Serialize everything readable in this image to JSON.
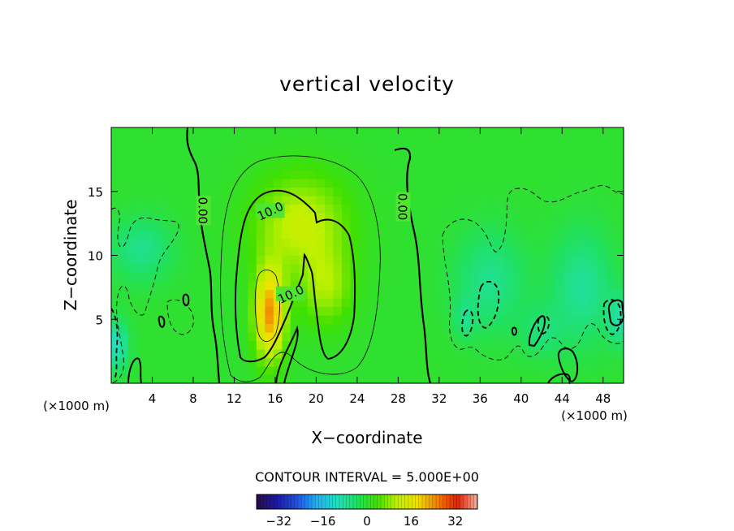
{
  "chart_data": {
    "type": "heatmap",
    "title": "vertical velocity",
    "xlabel": "X−coordinate",
    "ylabel": "Z−coordinate",
    "x_unit_left": "(×1000 m)",
    "x_unit_right": "(×1000 m)",
    "xlim": [
      0,
      50
    ],
    "ylim": [
      0,
      20
    ],
    "xticks": [
      4,
      8,
      12,
      16,
      20,
      24,
      28,
      32,
      36,
      40,
      44,
      48
    ],
    "yticks": [
      5,
      10,
      15
    ],
    "contour_interval_label": "CONTOUR INTERVAL = 5.000E+00",
    "contour_labels": [
      {
        "text": "0.00",
        "x": 9.0,
        "y": 13.5
      },
      {
        "text": "0.00",
        "x": 28.5,
        "y": 13.8
      },
      {
        "text": "10.0",
        "x": 15.5,
        "y": 13.5
      },
      {
        "text": "10.0",
        "x": 17.5,
        "y": 7.0
      }
    ],
    "colorbar": {
      "range": [
        -40,
        40
      ],
      "ticks": [
        -32,
        -16,
        0,
        16,
        32
      ],
      "colors": [
        "#2a0a4a",
        "#1a1aa0",
        "#2050e0",
        "#20b0f0",
        "#20e0c0",
        "#20e060",
        "#40e000",
        "#c0f000",
        "#f0e000",
        "#f08000",
        "#e02000",
        "#f0b0a0"
      ]
    },
    "field_sources": [
      {
        "x": 15.5,
        "z": 5.5,
        "amp": 24,
        "sx": 1.5,
        "sz": 3.5
      },
      {
        "x": 18.5,
        "z": 12.5,
        "amp": 12,
        "sx": 4.5,
        "sz": 3.8
      },
      {
        "x": 21.0,
        "z": 7.5,
        "amp": 9,
        "sx": 2.5,
        "sz": 3.0
      },
      {
        "x": 3.0,
        "z": 10.5,
        "amp": -7,
        "sx": 3.0,
        "sz": 2.5
      },
      {
        "x": 0.5,
        "z": 3.0,
        "amp": -11,
        "sx": 1.2,
        "sz": 2.0
      },
      {
        "x": 37.0,
        "z": 8.0,
        "amp": -7,
        "sx": 3.5,
        "sz": 4.0
      },
      {
        "x": 46.0,
        "z": 7.5,
        "amp": -8,
        "sx": 3.0,
        "sz": 4.5
      },
      {
        "x": 42.0,
        "z": 4.0,
        "amp": -5,
        "sx": 2.0,
        "sz": 2.0
      },
      {
        "x": 34.5,
        "z": 5.0,
        "amp": -5,
        "sx": 1.0,
        "sz": 1.5
      },
      {
        "x": 49.5,
        "z": 5.0,
        "amp": -8,
        "sx": 1.0,
        "sz": 2.0
      }
    ]
  }
}
